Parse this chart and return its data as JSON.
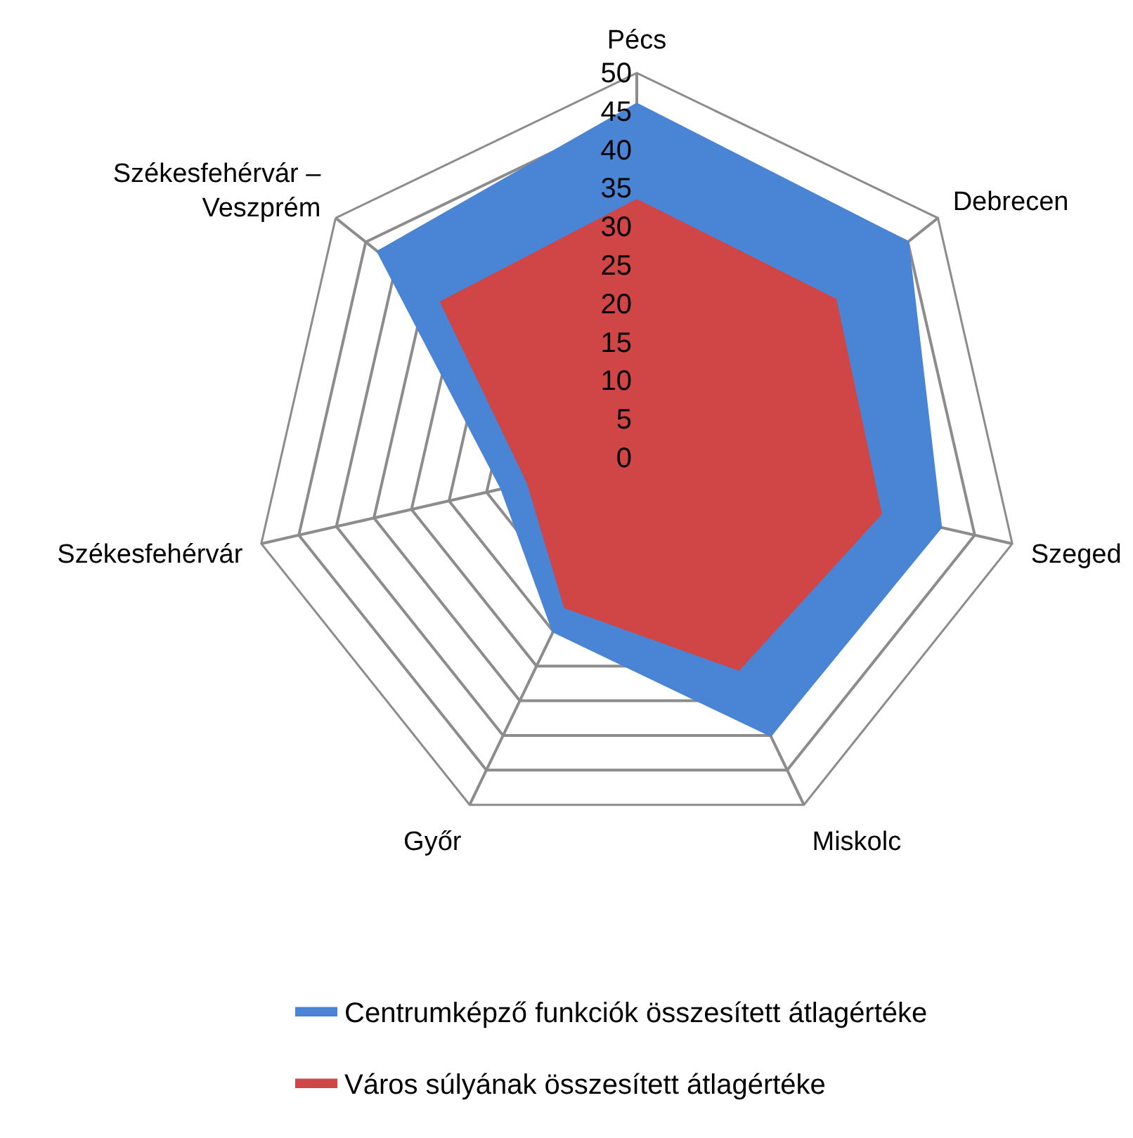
{
  "chart_data": {
    "type": "radar",
    "categories": [
      "Pécs",
      "Debrecen",
      "Szeged",
      "Miskolc",
      "Győr",
      "Székesfehérvár",
      "Székesfehérvár – Veszprém"
    ],
    "series": [
      {
        "name": "Centrumképző funkciók összesített átlagértéke",
        "color": "#4a84d4",
        "values": [
          46,
          45,
          40.5,
          40,
          25,
          18,
          43
        ]
      },
      {
        "name": "Város súlyának összesített átlagértéke",
        "color": "#d04545",
        "values": [
          33.5,
          33,
          32.5,
          30.5,
          21.5,
          14.5,
          32.5
        ]
      }
    ],
    "ylim": [
      0,
      50
    ],
    "yticks": [
      0,
      5,
      10,
      15,
      20,
      25,
      30,
      35,
      40,
      45,
      50
    ],
    "grid": true,
    "legend": "bottom"
  }
}
